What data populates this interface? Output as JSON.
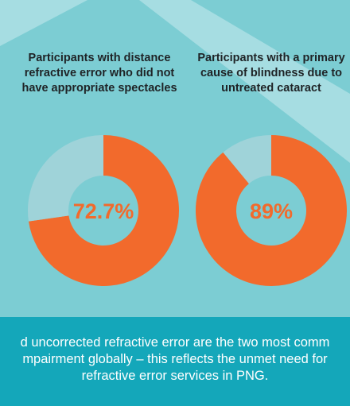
{
  "colors": {
    "background": "#7ccdd3",
    "stripe": "#a6dde2",
    "accent_orange": "#f26a2c",
    "remainder": "#9fd3d9",
    "footer_background": "#14a7ba",
    "title_text": "#1f2326",
    "footer_text": "#ffffff"
  },
  "chart_data": [
    {
      "type": "pie",
      "title": "Participants with distance refractive error who did not have appropriate spectacles",
      "values": [
        72.7,
        27.3
      ],
      "center_label": "72.7%"
    },
    {
      "type": "pie",
      "title": "Participants with a primary cause of blindness due to untreated cataract",
      "values": [
        89,
        11
      ],
      "center_label": "89%"
    }
  ],
  "footer": {
    "line1": "d uncorrected refractive error are the two most comm",
    "line2": "mpairment globally – this reflects the unmet need for",
    "line3": "refractive error services in PNG."
  }
}
